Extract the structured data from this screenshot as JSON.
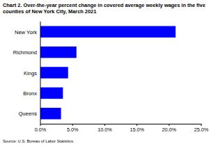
{
  "chart_data": {
    "type": "bar",
    "orientation": "horizontal",
    "title": "Chart 2. Over-the-year percent change in covered average weekly wages in the five counties of New York City, March 2021",
    "source": "Source: U.S. Bureau of Labor Statistics.",
    "categories": [
      "New York",
      "Richmond",
      "Kings",
      "Bronx",
      "Queens"
    ],
    "values": [
      21.0,
      5.6,
      4.3,
      3.5,
      3.2
    ],
    "color": "#0000ff",
    "xlim": [
      0,
      25
    ],
    "xticks": [
      {
        "value": 0,
        "label": "0.0%"
      },
      {
        "value": 5,
        "label": "5.0%"
      },
      {
        "value": 10,
        "label": "10.0%"
      },
      {
        "value": 15,
        "label": "15.0%"
      },
      {
        "value": 20,
        "label": "20.0%"
      },
      {
        "value": 25,
        "label": "25.0%"
      }
    ],
    "grid": false
  }
}
